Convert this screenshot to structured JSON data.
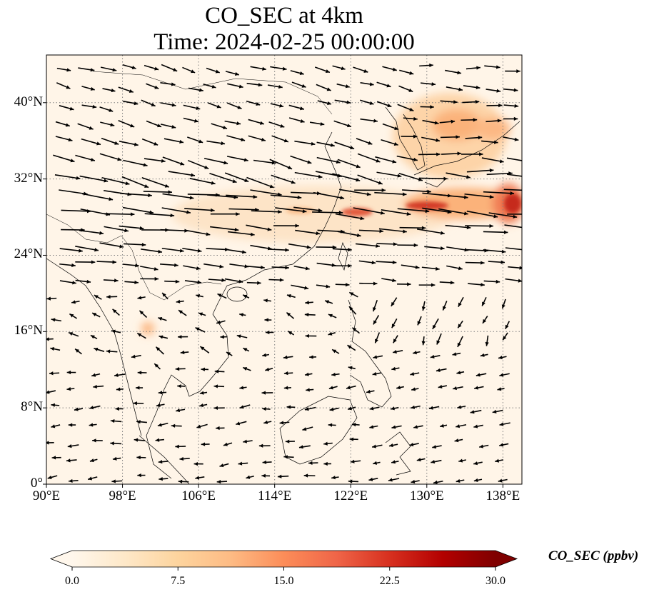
{
  "title": {
    "line1": "CO_SEC at 4km",
    "line2": "Time: 2024-02-25 00:00:00"
  },
  "axes": {
    "x_ticks": [
      "90°E",
      "98°E",
      "106°E",
      "114°E",
      "122°E",
      "130°E",
      "138°E"
    ],
    "x_values": [
      90,
      98,
      106,
      114,
      122,
      130,
      138
    ],
    "y_ticks": [
      "0°",
      "8°N",
      "16°N",
      "24°N",
      "32°N",
      "40°N"
    ],
    "y_values": [
      0,
      8,
      16,
      24,
      32,
      40
    ],
    "lon_range": [
      90,
      140
    ],
    "lat_range": [
      0,
      45
    ],
    "grid": "dotted"
  },
  "colorbar": {
    "label": "CO_SEC (ppbv)",
    "ticks": [
      "0.0",
      "7.5",
      "15.0",
      "22.5",
      "30.0"
    ],
    "tick_values": [
      0,
      7.5,
      15,
      22.5,
      30
    ],
    "range": [
      0,
      30
    ],
    "colormap": "OrRd",
    "colors": [
      "#fff7ec",
      "#fee8c8",
      "#fdd49e",
      "#fdbb84",
      "#fc8d59",
      "#ef6548",
      "#d7301f",
      "#b30000",
      "#7f0000"
    ]
  },
  "colors": {
    "background": "#fff5e8",
    "coastline": "#000000",
    "gridline": "#808080",
    "arrow": "#000000"
  }
}
